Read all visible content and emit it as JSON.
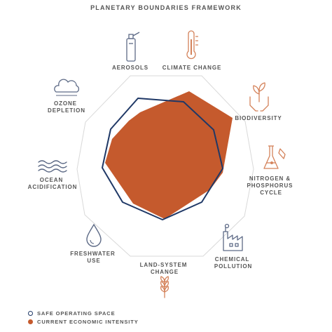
{
  "title": "PLANETARY BOUNDARIES FRAMEWORK",
  "colors": {
    "safe_outline": "#1f3866",
    "current_fill": "#c55a2d",
    "grid": "#d9d9d9",
    "icon_blue": "#5d6a86",
    "icon_orange": "#d4825a",
    "text": "#555555"
  },
  "boundaries": [
    {
      "lines": [
        "AEROSOLS"
      ],
      "icon": "spray-can-icon"
    },
    {
      "lines": [
        "CLIMATE CHANGE"
      ],
      "icon": "thermometer-icon"
    },
    {
      "lines": [
        "BIODIVERSITY"
      ],
      "icon": "hands-plant-icon"
    },
    {
      "lines": [
        "NITROGEN &",
        "PHOSPHORUS",
        "CYCLE"
      ],
      "icon": "flask-icon"
    },
    {
      "lines": [
        "CHEMICAL",
        "POLLUTION"
      ],
      "icon": "factory-icon"
    },
    {
      "lines": [
        "LAND-SYSTEM",
        "CHANGE"
      ],
      "icon": "wheat-icon"
    },
    {
      "lines": [
        "FRESHWATER",
        "USE"
      ],
      "icon": "water-drop-icon"
    },
    {
      "lines": [
        "OCEAN",
        "ACIDIFICATION"
      ],
      "icon": "waves-icon"
    },
    {
      "lines": [
        "OZONE",
        "DEPLETION"
      ],
      "icon": "cloud-icon"
    }
  ],
  "legend": {
    "safe": "SAFE OPERATING SPACE",
    "current": "CURRENT ECONOMIC INTENSITY"
  }
}
